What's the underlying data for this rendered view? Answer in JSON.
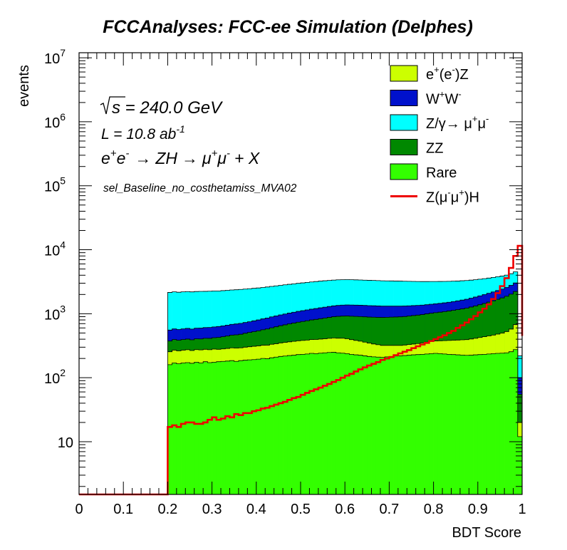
{
  "chart_data": {
    "type": "stacked-histogram",
    "title": "FCCAnalyses: FCC-ee Simulation (Delphes)",
    "xlabel": "BDT Score",
    "ylabel": "events",
    "xlim": [
      0,
      1
    ],
    "ylim": [
      1.5,
      12000000
    ],
    "log_y": true,
    "grid": false,
    "legend_position": "top-right",
    "x_tick_labels": [
      "0",
      "0.1",
      "0.2",
      "0.3",
      "0.4",
      "0.5",
      "0.6",
      "0.7",
      "0.8",
      "0.9",
      "1"
    ],
    "y_ticks": [
      {
        "value": 10,
        "base": "10",
        "exp": ""
      },
      {
        "value": 100,
        "base": "10",
        "exp": "2"
      },
      {
        "value": 1000,
        "base": "10",
        "exp": "3"
      },
      {
        "value": 10000,
        "base": "10",
        "exp": "4"
      },
      {
        "value": 100000,
        "base": "10",
        "exp": "5"
      },
      {
        "value": 1000000,
        "base": "10",
        "exp": "6"
      },
      {
        "value": 10000000,
        "base": "10",
        "exp": "7"
      }
    ],
    "annotations": {
      "sqrt_s": {
        "sym": "s",
        "rest": " = 240.0 GeV"
      },
      "luminosity": {
        "base": "L = 10.8 ab",
        "exp": "-1"
      },
      "process": {
        "lhs_e1": "e",
        "sup1": "+",
        "lhs_e2": "e",
        "sup2": "-",
        "arrow1": "→",
        "zh": "ZH",
        "arrow2": "→",
        "mu1": "μ",
        "sup3": "+",
        "mu2": "μ",
        "sup4": "-",
        "tail": "+ X"
      },
      "selection": "sel_Baseline_no_costhetamiss_MVA02"
    },
    "legend": [
      {
        "parts": [
          [
            "e",
            ""
          ],
          [
            "+",
            "sup"
          ],
          [
            "(e",
            ""
          ],
          [
            "-",
            "sup"
          ],
          [
            ")Z",
            ""
          ]
        ],
        "color": "#ccff00",
        "kind": "fill"
      },
      {
        "parts": [
          [
            "W",
            ""
          ],
          [
            "+",
            "sup"
          ],
          [
            "W",
            ""
          ],
          [
            "-",
            "sup"
          ]
        ],
        "color": "#0011cc",
        "kind": "fill"
      },
      {
        "parts": [
          [
            "Z/γ→ μ",
            ""
          ],
          [
            "+",
            "sup"
          ],
          [
            "μ",
            ""
          ],
          [
            "-",
            "sup"
          ]
        ],
        "color": "#00ffff",
        "kind": "fill"
      },
      {
        "parts": [
          [
            "ZZ",
            ""
          ]
        ],
        "color": "#008800",
        "kind": "fill"
      },
      {
        "parts": [
          [
            "Rare",
            ""
          ]
        ],
        "color": "#33ff00",
        "kind": "fill"
      },
      {
        "parts": [
          [
            "Z(μ",
            ""
          ],
          [
            "-",
            "sup"
          ],
          [
            "μ",
            ""
          ],
          [
            "+",
            "sup"
          ],
          [
            ")H",
            ""
          ]
        ],
        "color": "#ee0000",
        "kind": "line"
      }
    ],
    "x": [
      0.205,
      0.215,
      0.225,
      0.235,
      0.245,
      0.255,
      0.265,
      0.275,
      0.285,
      0.295,
      0.305,
      0.315,
      0.325,
      0.335,
      0.345,
      0.355,
      0.365,
      0.375,
      0.385,
      0.395,
      0.405,
      0.415,
      0.425,
      0.435,
      0.445,
      0.455,
      0.465,
      0.475,
      0.485,
      0.495,
      0.505,
      0.515,
      0.525,
      0.535,
      0.545,
      0.555,
      0.565,
      0.575,
      0.585,
      0.595,
      0.605,
      0.615,
      0.625,
      0.635,
      0.645,
      0.655,
      0.665,
      0.675,
      0.685,
      0.695,
      0.705,
      0.715,
      0.725,
      0.735,
      0.745,
      0.755,
      0.765,
      0.775,
      0.785,
      0.795,
      0.805,
      0.815,
      0.825,
      0.835,
      0.845,
      0.855,
      0.865,
      0.875,
      0.885,
      0.895,
      0.905,
      0.915,
      0.925,
      0.935,
      0.945,
      0.955,
      0.965,
      0.975,
      0.985,
      0.995
    ],
    "bin_edges": [
      0.2,
      1.0
    ],
    "series": [
      {
        "name": "Rare",
        "color": "#33ff00",
        "values": [
          160,
          170,
          165,
          170,
          172,
          168,
          175,
          170,
          178,
          172,
          175,
          178,
          180,
          182,
          185,
          180,
          185,
          188,
          190,
          192,
          195,
          200,
          198,
          205,
          210,
          215,
          218,
          222,
          225,
          230,
          232,
          235,
          240,
          238,
          242,
          245,
          248,
          250,
          245,
          242,
          238,
          232,
          228,
          225,
          220,
          215,
          212,
          210,
          208,
          212,
          215,
          218,
          220,
          222,
          225,
          228,
          230,
          232,
          235,
          238,
          240,
          238,
          235,
          232,
          230,
          228,
          226,
          224,
          225,
          228,
          230,
          232,
          235,
          238,
          240,
          242,
          245,
          255,
          275,
          12
        ]
      },
      {
        "name": "e⁺(e⁻)Z",
        "color": "#ccff00",
        "values": [
          95,
          100,
          98,
          100,
          102,
          98,
          100,
          102,
          100,
          102,
          105,
          100,
          102,
          105,
          108,
          110,
          108,
          112,
          115,
          118,
          120,
          122,
          125,
          128,
          130,
          135,
          138,
          142,
          145,
          148,
          150,
          152,
          155,
          158,
          160,
          162,
          165,
          168,
          170,
          172,
          168,
          162,
          155,
          148,
          140,
          132,
          125,
          118,
          112,
          108,
          105,
          102,
          100,
          102,
          105,
          108,
          112,
          118,
          125,
          130,
          135,
          140,
          145,
          150,
          155,
          160,
          165,
          170,
          178,
          185,
          195,
          205,
          215,
          225,
          240,
          255,
          280,
          320,
          400,
          8
        ]
      },
      {
        "name": "ZZ",
        "color": "#008800",
        "values": [
          120,
          125,
          122,
          125,
          128,
          125,
          130,
          132,
          135,
          138,
          142,
          148,
          155,
          162,
          170,
          178,
          185,
          195,
          205,
          215,
          225,
          240,
          255,
          270,
          285,
          300,
          315,
          330,
          345,
          360,
          375,
          390,
          405,
          420,
          435,
          450,
          465,
          480,
          495,
          505,
          515,
          520,
          525,
          530,
          535,
          540,
          545,
          550,
          555,
          560,
          565,
          570,
          575,
          580,
          590,
          600,
          610,
          620,
          635,
          650,
          665,
          680,
          700,
          720,
          745,
          770,
          800,
          830,
          870,
          910,
          960,
          1010,
          1070,
          1130,
          1200,
          1270,
          1350,
          1450,
          1550,
          35
        ]
      },
      {
        "name": "W⁺W⁻",
        "color": "#0011cc",
        "values": [
          180,
          185,
          182,
          185,
          188,
          185,
          190,
          192,
          195,
          198,
          200,
          205,
          210,
          215,
          220,
          225,
          230,
          235,
          240,
          250,
          260,
          270,
          280,
          290,
          300,
          310,
          320,
          330,
          340,
          350,
          360,
          370,
          380,
          390,
          400,
          410,
          420,
          430,
          440,
          445,
          450,
          455,
          455,
          455,
          455,
          452,
          450,
          445,
          440,
          435,
          430,
          425,
          420,
          415,
          410,
          405,
          400,
          395,
          390,
          390,
          392,
          395,
          400,
          410,
          420,
          430,
          445,
          460,
          480,
          500,
          520,
          545,
          570,
          600,
          630,
          660,
          700,
          750,
          800,
          45
        ]
      },
      {
        "name": "Z/γ→μ⁺μ⁻",
        "color": "#00ffff",
        "values": [
          1600,
          1620,
          1600,
          1620,
          1630,
          1620,
          1630,
          1640,
          1630,
          1640,
          1650,
          1640,
          1650,
          1660,
          1670,
          1680,
          1690,
          1700,
          1710,
          1720,
          1730,
          1740,
          1760,
          1780,
          1800,
          1820,
          1840,
          1860,
          1880,
          1900,
          1920,
          1940,
          1960,
          1980,
          2000,
          2010,
          2020,
          2030,
          2040,
          2040,
          2040,
          2030,
          2020,
          2010,
          2000,
          1990,
          1980,
          1970,
          1960,
          1950,
          1940,
          1930,
          1920,
          1900,
          1880,
          1860,
          1840,
          1820,
          1800,
          1780,
          1760,
          1740,
          1720,
          1700,
          1680,
          1660,
          1640,
          1620,
          1600,
          1580,
          1560,
          1540,
          1520,
          1500,
          1480,
          1460,
          1440,
          1450,
          1500,
          120
        ]
      }
    ],
    "signal": {
      "name": "Z(μ⁻μ⁺)H",
      "color": "#ee0000",
      "low_value": 1.5,
      "values": [
        17,
        18,
        17,
        19,
        20,
        20,
        19,
        19,
        20,
        22,
        24,
        22,
        23,
        25,
        24,
        27,
        26,
        28,
        28,
        30,
        31,
        33,
        34,
        36,
        38,
        40,
        42,
        45,
        48,
        50,
        54,
        58,
        62,
        66,
        70,
        75,
        80,
        86,
        92,
        100,
        108,
        115,
        125,
        135,
        145,
        155,
        165,
        175,
        190,
        200,
        210,
        225,
        240,
        255,
        270,
        290,
        310,
        330,
        350,
        375,
        400,
        430,
        460,
        500,
        540,
        600,
        660,
        730,
        820,
        920,
        1050,
        1200,
        1400,
        1700,
        2100,
        2700,
        3600,
        5200,
        8000,
        11500
      ]
    }
  }
}
